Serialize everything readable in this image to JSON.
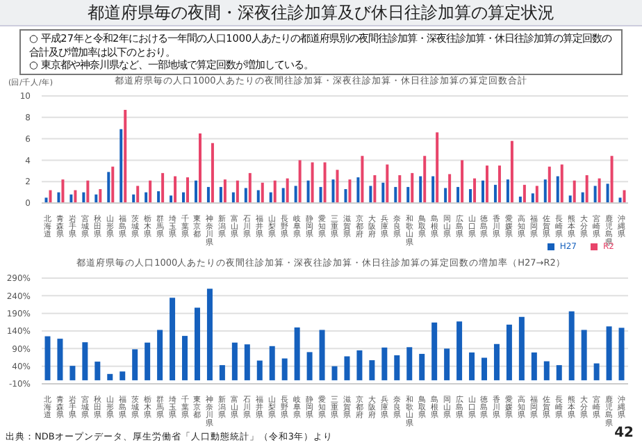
{
  "chart_data": [
    {
      "type": "bar",
      "title": "都道府県毎の人口1000人あたりの夜間往診加算・深夜往診加算・休日往診加算の算定回数合計",
      "ylabel": "(回/千人/年)",
      "annotations": [
        "都道府県毎の夜間・深夜往診加算及び休日往診加算の算定状況",
        "○ 平成27年と令和2年における一年間の人口1000人あたりの都道府県別の夜間往診加算・深夜往診加算・休日往診加算の算定回数の合計及び増加率は以下のとおり。",
        "○ 東京都や神奈川県など、一部地域で算定回数が増加している。"
      ],
      "categories": [
        "北海道",
        "青森県",
        "岩手県",
        "宮城県",
        "秋田県",
        "山形県",
        "福島県",
        "茨城県",
        "栃木県",
        "群馬県",
        "埼玉県",
        "千葉県",
        "東京都",
        "神奈川県",
        "新潟県",
        "富山県",
        "石川県",
        "福井県",
        "山梨県",
        "長野県",
        "岐阜県",
        "静岡県",
        "愛知県",
        "三重県",
        "滋賀県",
        "京都府",
        "大阪府",
        "兵庫県",
        "奈良県",
        "和歌山県",
        "鳥取県",
        "島根県",
        "岡山県",
        "広島県",
        "山口県",
        "徳島県",
        "香川県",
        "愛媛県",
        "高知県",
        "福岡県",
        "佐賀県",
        "長崎県",
        "熊本県",
        "大分県",
        "宮崎県",
        "鹿児島県",
        "沖縄県"
      ],
      "series": [
        {
          "name": "H27",
          "color": "#1560bd",
          "values": [
            0.5,
            1.0,
            0.8,
            1.0,
            0.8,
            2.9,
            6.9,
            0.8,
            1.0,
            1.1,
            0.7,
            1.0,
            2.1,
            1.5,
            1.5,
            1.0,
            1.4,
            1.2,
            1.0,
            1.4,
            1.6,
            2.1,
            1.5,
            2.2,
            1.3,
            2.4,
            1.6,
            1.9,
            1.5,
            1.5,
            2.5,
            2.5,
            1.4,
            1.5,
            1.3,
            2.1,
            1.7,
            2.2,
            0.6,
            0.9,
            2.2,
            2.5,
            0.7,
            1.0,
            1.6,
            1.8,
            0.5
          ]
        },
        {
          "name": "R2",
          "color": "#e8446a",
          "values": [
            1.2,
            2.2,
            1.2,
            2.1,
            1.3,
            3.4,
            8.7,
            1.6,
            2.1,
            2.8,
            2.5,
            2.4,
            6.5,
            5.6,
            2.2,
            2.1,
            2.8,
            1.9,
            2.1,
            2.3,
            4.0,
            3.8,
            3.8,
            3.1,
            2.2,
            4.4,
            2.6,
            3.6,
            2.6,
            2.8,
            4.4,
            6.6,
            2.7,
            4.0,
            2.3,
            3.5,
            3.5,
            5.8,
            1.7,
            1.6,
            3.4,
            3.6,
            2.1,
            2.6,
            2.3,
            4.4,
            1.2
          ]
        }
      ],
      "ylim": [
        0,
        10
      ],
      "yticks": [
        0,
        2,
        4,
        6,
        8,
        10
      ],
      "grid": "y",
      "legend": "bottom right"
    },
    {
      "type": "bar",
      "title": "都道府県毎の人口1000人あたりの夜間往診加算・深夜往診加算・休日往診加算の算定回数の増加率（H27→R2）",
      "annotations": [
        "出典：NDBオープンデータ、厚生労働省「人口動態統計」（令和3年）より",
        "42"
      ],
      "categories": [
        "北海道",
        "青森県",
        "岩手県",
        "宮城県",
        "秋田県",
        "山形県",
        "福島県",
        "茨城県",
        "栃木県",
        "群馬県",
        "埼玉県",
        "千葉県",
        "東京都",
        "神奈川県",
        "新潟県",
        "富山県",
        "石川県",
        "福井県",
        "山梨県",
        "長野県",
        "岐阜県",
        "静岡県",
        "愛知県",
        "三重県",
        "滋賀県",
        "京都府",
        "大阪府",
        "兵庫県",
        "奈良県",
        "和歌山県",
        "鳥取県",
        "島根県",
        "岡山県",
        "広島県",
        "山口県",
        "徳島県",
        "香川県",
        "愛媛県",
        "高知県",
        "福岡県",
        "佐賀県",
        "長崎県",
        "熊本県",
        "大分県",
        "宮崎県",
        "鹿児島県",
        "沖縄県"
      ],
      "series": [
        {
          "color": "#1560bd",
          "values": [
            125,
            118,
            41,
            108,
            53,
            18,
            25,
            88,
            107,
            143,
            234,
            126,
            206,
            260,
            43,
            107,
            102,
            56,
            97,
            62,
            150,
            80,
            143,
            40,
            68,
            85,
            57,
            93,
            71,
            94,
            75,
            164,
            90,
            167,
            79,
            64,
            103,
            158,
            180,
            79,
            54,
            43,
            196,
            143,
            48,
            153,
            149
          ]
        }
      ],
      "ylim": [
        -10,
        290
      ],
      "yticks": [
        {
          "value": -10,
          "label": "-10%"
        },
        {
          "value": 40,
          "label": "40%"
        },
        {
          "value": 90,
          "label": "90%"
        },
        {
          "value": 140,
          "label": "140%"
        },
        {
          "value": 190,
          "label": "190%"
        },
        {
          "value": 240,
          "label": "240%"
        },
        {
          "value": 290,
          "label": "290%"
        }
      ],
      "grid": "y"
    }
  ]
}
